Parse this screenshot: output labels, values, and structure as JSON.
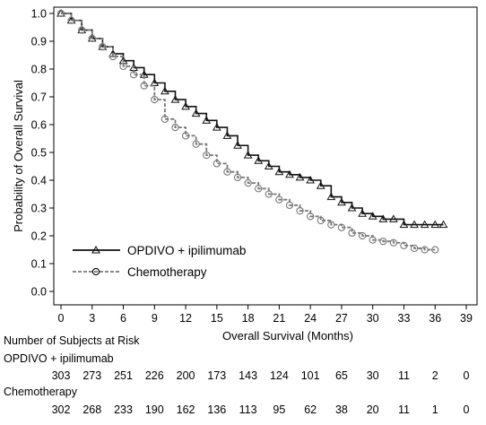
{
  "chart_data": {
    "type": "line",
    "title": "",
    "xlabel": "Overall Survival (Months)",
    "ylabel": "Probability of Overall Survival",
    "xlim": [
      0,
      39
    ],
    "ylim": [
      0,
      1.0
    ],
    "x_ticks": [
      0,
      3,
      6,
      9,
      12,
      15,
      18,
      21,
      24,
      27,
      30,
      33,
      36,
      39
    ],
    "y_ticks": [
      "0.0",
      "0.1",
      "0.2",
      "0.3",
      "0.4",
      "0.5",
      "0.6",
      "0.7",
      "0.8",
      "0.9",
      "1.0"
    ],
    "grid": false,
    "legend_position": "bottom-left",
    "series": [
      {
        "name": "OPDIVO + ipilimumab",
        "style": "solid",
        "marker": "triangle",
        "color": "#111111",
        "x": [
          0,
          1,
          2,
          3,
          4,
          5,
          6,
          7,
          8,
          9,
          10,
          11,
          12,
          13,
          14,
          15,
          16,
          17,
          18,
          19,
          20,
          21,
          22,
          23,
          24,
          25,
          26,
          27,
          28,
          29,
          30,
          31,
          32,
          33,
          34,
          35,
          36,
          36.8
        ],
        "y": [
          1.0,
          0.975,
          0.94,
          0.91,
          0.88,
          0.855,
          0.83,
          0.805,
          0.78,
          0.75,
          0.72,
          0.69,
          0.665,
          0.64,
          0.615,
          0.59,
          0.56,
          0.525,
          0.49,
          0.47,
          0.45,
          0.43,
          0.42,
          0.41,
          0.4,
          0.38,
          0.34,
          0.32,
          0.3,
          0.28,
          0.27,
          0.26,
          0.26,
          0.24,
          0.24,
          0.24,
          0.24,
          0.24
        ]
      },
      {
        "name": "Chemotherapy",
        "style": "dashed",
        "marker": "circle",
        "color": "#777777",
        "x": [
          0,
          1,
          2,
          3,
          4,
          5,
          6,
          7,
          8,
          9,
          10,
          11,
          12,
          13,
          14,
          15,
          16,
          17,
          18,
          19,
          20,
          21,
          22,
          23,
          24,
          25,
          26,
          27,
          28,
          29,
          30,
          31,
          32,
          33,
          34,
          35,
          36
        ],
        "y": [
          1.0,
          0.975,
          0.94,
          0.91,
          0.88,
          0.845,
          0.81,
          0.78,
          0.74,
          0.69,
          0.62,
          0.59,
          0.56,
          0.53,
          0.49,
          0.46,
          0.43,
          0.41,
          0.39,
          0.37,
          0.35,
          0.33,
          0.31,
          0.29,
          0.27,
          0.255,
          0.24,
          0.23,
          0.21,
          0.2,
          0.185,
          0.18,
          0.175,
          0.165,
          0.155,
          0.15,
          0.15
        ]
      }
    ],
    "risk_table": {
      "heading": "Number of Subjects at Risk",
      "rows": [
        {
          "label": "OPDIVO + ipilimumab",
          "values": [
            "303",
            "273",
            "251",
            "226",
            "200",
            "173",
            "143",
            "124",
            "101",
            "65",
            "30",
            "11",
            "2",
            "0"
          ]
        },
        {
          "label": "Chemotherapy",
          "values": [
            "302",
            "268",
            "233",
            "190",
            "162",
            "136",
            "113",
            "95",
            "62",
            "38",
            "20",
            "11",
            "1",
            "0"
          ]
        }
      ]
    }
  }
}
